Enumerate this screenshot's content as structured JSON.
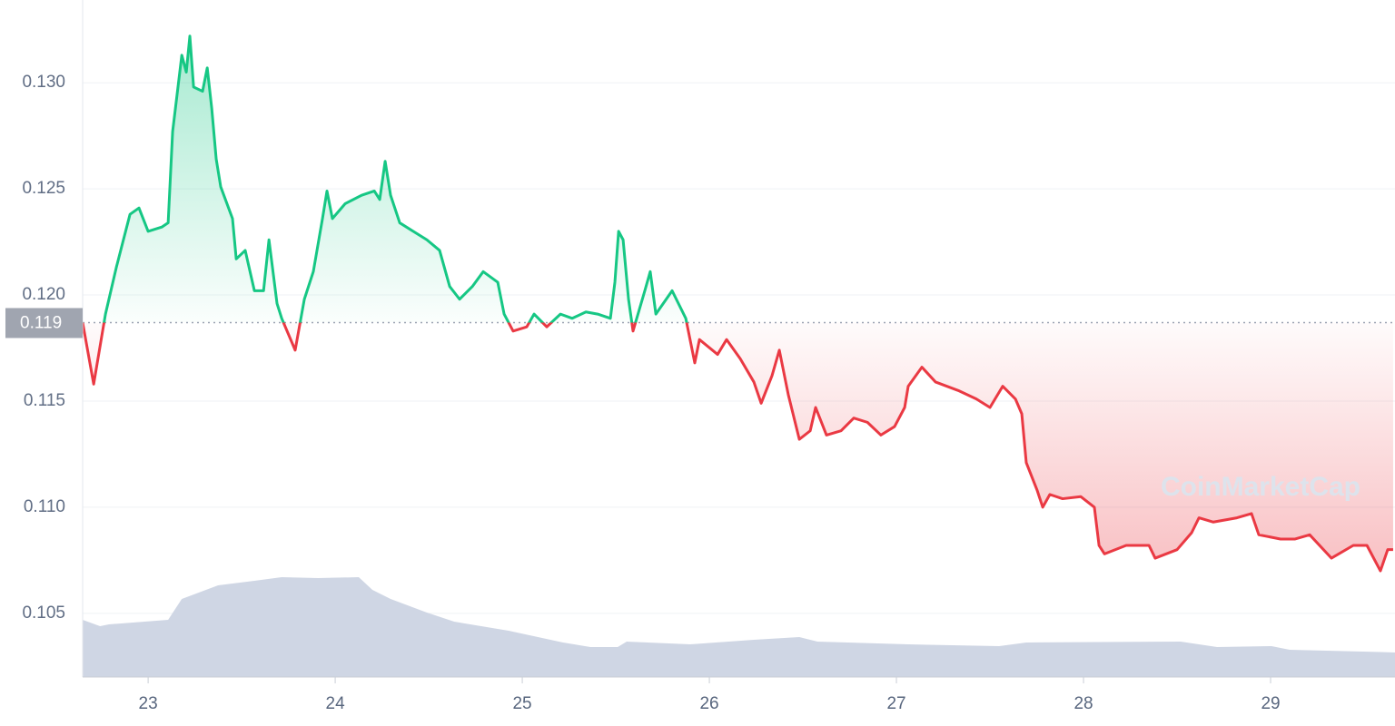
{
  "chart_data": {
    "type": "line",
    "xlim": [
      22.65,
      29.665
    ],
    "ylim": [
      0.102,
      0.1339
    ],
    "xticks": [
      23,
      24,
      25,
      26,
      27,
      28,
      29
    ],
    "yticks": [
      0.105,
      {
        "value": 0.11,
        "label": "0.110"
      },
      0.115,
      {
        "value": 0.12,
        "label": "0.120"
      },
      0.125,
      {
        "value": 0.13,
        "label": "0.130"
      }
    ],
    "grid": true,
    "baseline": {
      "value": 0.1187,
      "label": "0.119"
    },
    "up_color": "#16c784",
    "down_color": "#ea3943",
    "watermark": "CoinMarketCap",
    "x": [
      22.65,
      22.709,
      22.772,
      22.83,
      22.903,
      22.951,
      23.0,
      23.073,
      23.107,
      23.131,
      23.18,
      23.204,
      23.223,
      23.243,
      23.291,
      23.316,
      23.34,
      23.364,
      23.388,
      23.451,
      23.471,
      23.519,
      23.568,
      23.617,
      23.646,
      23.689,
      23.714,
      23.786,
      23.835,
      23.883,
      23.932,
      23.956,
      23.985,
      24.053,
      24.141,
      24.209,
      24.238,
      24.267,
      24.296,
      24.345,
      24.417,
      24.49,
      24.558,
      24.612,
      24.665,
      24.733,
      24.791,
      24.869,
      24.903,
      24.951,
      25.024,
      25.063,
      25.131,
      25.204,
      25.267,
      25.34,
      25.403,
      25.471,
      25.495,
      25.515,
      25.539,
      25.568,
      25.592,
      25.655,
      25.684,
      25.714,
      25.801,
      25.874,
      25.922,
      25.947,
      26.044,
      26.092,
      26.165,
      26.238,
      26.277,
      26.335,
      26.374,
      26.422,
      26.481,
      26.539,
      26.568,
      26.626,
      26.704,
      26.772,
      26.845,
      26.917,
      26.99,
      27.044,
      27.063,
      27.136,
      27.209,
      27.33,
      27.427,
      27.5,
      27.568,
      27.636,
      27.67,
      27.694,
      27.752,
      27.782,
      27.82,
      27.888,
      27.985,
      28.058,
      28.083,
      28.112,
      28.228,
      28.35,
      28.383,
      28.5,
      28.578,
      28.617,
      28.694,
      28.82,
      28.898,
      28.937,
      29.053,
      29.131,
      29.209,
      29.325,
      29.442,
      29.515,
      29.587,
      29.626,
      29.655
    ],
    "values": [
      0.1187,
      0.1158,
      0.1191,
      0.1213,
      0.1238,
      0.1241,
      0.123,
      0.1232,
      0.1234,
      0.1277,
      0.1313,
      0.1305,
      0.1322,
      0.1298,
      0.1296,
      0.1307,
      0.1288,
      0.1264,
      0.1251,
      0.1236,
      0.1217,
      0.1221,
      0.1202,
      0.1202,
      0.1226,
      0.1196,
      0.1189,
      0.1174,
      0.1198,
      0.1211,
      0.1236,
      0.1249,
      0.1236,
      0.1243,
      0.1247,
      0.1249,
      0.1245,
      0.1263,
      0.1247,
      0.1234,
      0.123,
      0.1226,
      0.1221,
      0.1204,
      0.1198,
      0.1204,
      0.1211,
      0.1206,
      0.1191,
      0.1183,
      0.1185,
      0.1191,
      0.1185,
      0.1191,
      0.1189,
      0.1192,
      0.1191,
      0.1189,
      0.1206,
      0.123,
      0.1226,
      0.1198,
      0.1183,
      0.1202,
      0.1211,
      0.1191,
      0.1202,
      0.1189,
      0.1168,
      0.1179,
      0.1172,
      0.1179,
      0.117,
      0.1159,
      0.1149,
      0.1162,
      0.1174,
      0.1153,
      0.1132,
      0.1136,
      0.1147,
      0.1134,
      0.1136,
      0.1142,
      0.114,
      0.1134,
      0.1138,
      0.1147,
      0.1157,
      0.1166,
      0.1159,
      0.1155,
      0.1151,
      0.1147,
      0.1157,
      0.1151,
      0.1144,
      0.1121,
      0.1108,
      0.11,
      0.1106,
      0.1104,
      0.1105,
      0.11,
      0.1082,
      0.1078,
      0.1082,
      0.1082,
      0.1076,
      0.108,
      0.1088,
      0.1095,
      0.1093,
      0.1095,
      0.1097,
      0.1087,
      0.1085,
      0.1085,
      0.1087,
      0.1076,
      0.1082,
      0.1082,
      0.107,
      0.108,
      0.108
    ],
    "volume": {
      "color": "#cfd6e4",
      "x": [
        22.65,
        22.743,
        22.791,
        23.107,
        23.18,
        23.374,
        23.568,
        23.714,
        23.908,
        24.126,
        24.199,
        24.296,
        24.49,
        24.636,
        24.927,
        25.218,
        25.364,
        25.51,
        25.558,
        25.898,
        26.238,
        26.481,
        26.578,
        27.063,
        27.549,
        27.694,
        28.519,
        28.714,
        29.005,
        29.102,
        29.495,
        29.665
      ],
      "values": [
        63,
        56,
        58,
        63,
        86,
        101,
        106,
        110,
        109,
        110,
        96,
        86,
        71,
        61,
        51,
        38,
        33,
        33,
        39,
        36,
        41,
        44,
        39,
        36,
        34,
        38,
        39,
        33,
        34,
        30,
        28,
        27
      ]
    }
  }
}
